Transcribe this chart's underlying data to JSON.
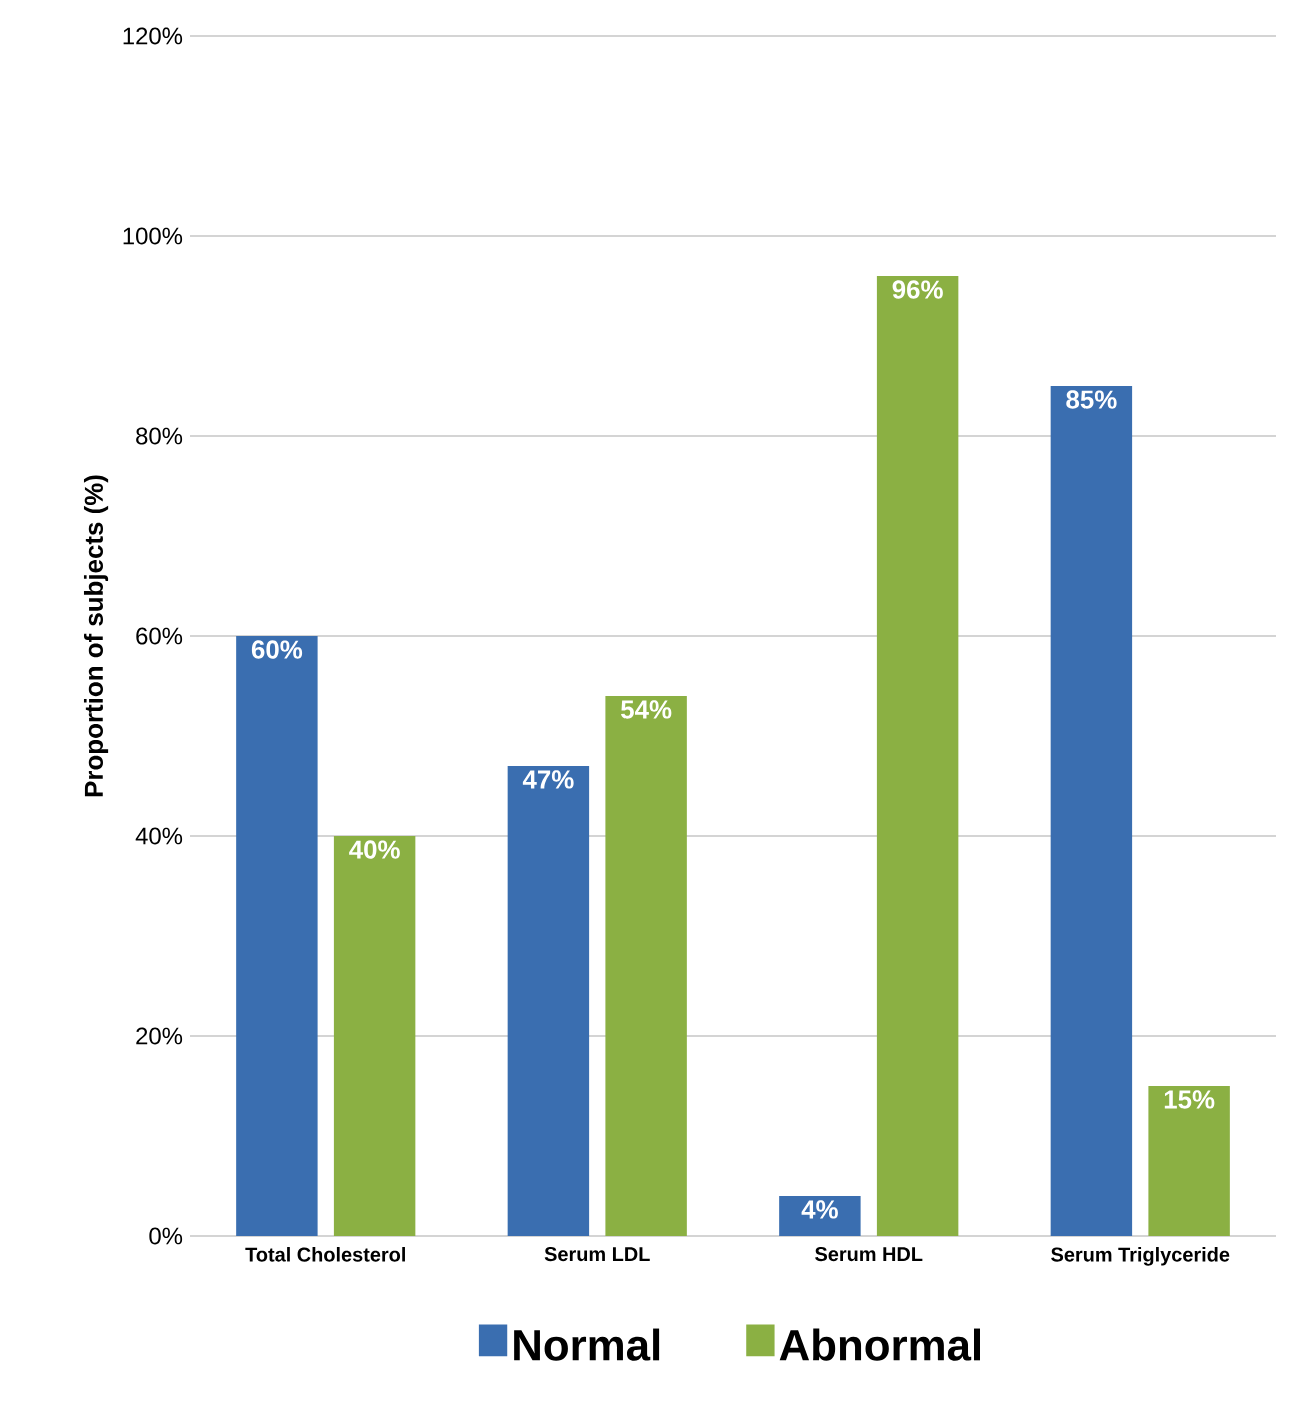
{
  "chart_data": {
    "type": "bar",
    "ylabel": "Proportion of subjects (%)",
    "categories": [
      "Total Cholesterol",
      "Serum LDL",
      "Serum HDL",
      "Serum Triglyceride"
    ],
    "series": [
      {
        "name": "Normal",
        "color": "#3a6eb0",
        "values": [
          60,
          47,
          4,
          85
        ],
        "value_labels": [
          "60%",
          "47%",
          "4%",
          "85%"
        ]
      },
      {
        "name": "Abnormal",
        "color": "#8bb043",
        "values": [
          40,
          54,
          96,
          15
        ],
        "value_labels": [
          "40%",
          "54%",
          "96%",
          "15%"
        ]
      }
    ],
    "ylim": [
      0,
      120
    ],
    "yticks": [
      {
        "value": 0,
        "label": "0%"
      },
      {
        "value": 20,
        "label": "20%"
      },
      {
        "value": 40,
        "label": "40%"
      },
      {
        "value": 60,
        "label": "60%"
      },
      {
        "value": 80,
        "label": "80%"
      },
      {
        "value": 100,
        "label": "100%"
      },
      {
        "value": 120,
        "label": "120%"
      }
    ],
    "grid": "y",
    "legend": "bottom"
  }
}
